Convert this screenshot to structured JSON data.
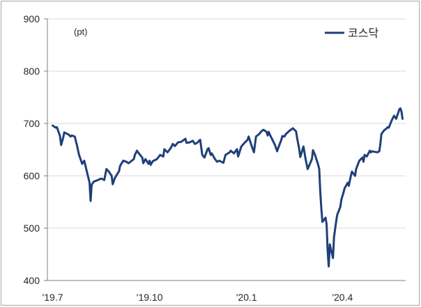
{
  "chart_data": {
    "type": "line",
    "ylabel": "(pt)",
    "ylim": [
      400,
      900
    ],
    "y_ticks": [
      400,
      500,
      600,
      700,
      800,
      900
    ],
    "xlim": [
      "2019-06-26",
      "2020-05-31"
    ],
    "x_ticks": [
      {
        "value": "2019-07-01",
        "label": "'19.7"
      },
      {
        "value": "2019-10-01",
        "label": "'19.10"
      },
      {
        "value": "2020-01-01",
        "label": "'20.1"
      },
      {
        "value": "2020-04-01",
        "label": "'20.4"
      }
    ],
    "grid": true,
    "legend": {
      "position": "top-right"
    },
    "x": [
      "2019-07-01",
      "2019-07-04",
      "2019-07-05",
      "2019-07-08",
      "2019-07-09",
      "2019-07-11",
      "2019-07-12",
      "2019-07-16",
      "2019-07-18",
      "2019-07-19",
      "2019-07-22",
      "2019-07-24",
      "2019-07-26",
      "2019-07-29",
      "2019-07-31",
      "2019-08-02",
      "2019-08-05",
      "2019-08-06",
      "2019-08-07",
      "2019-08-09",
      "2019-08-13",
      "2019-08-16",
      "2019-08-19",
      "2019-08-21",
      "2019-08-23",
      "2019-08-26",
      "2019-08-27",
      "2019-08-29",
      "2019-09-02",
      "2019-09-03",
      "2019-09-06",
      "2019-09-09",
      "2019-09-11",
      "2019-09-16",
      "2019-09-17",
      "2019-09-19",
      "2019-09-20",
      "2019-09-24",
      "2019-09-25",
      "2019-09-27",
      "2019-09-30",
      "2019-10-01",
      "2019-10-02",
      "2019-10-04",
      "2019-10-08",
      "2019-10-11",
      "2019-10-14",
      "2019-10-15",
      "2019-10-18",
      "2019-10-21",
      "2019-10-23",
      "2019-10-25",
      "2019-10-28",
      "2019-10-31",
      "2019-11-04",
      "2019-11-05",
      "2019-11-08",
      "2019-11-11",
      "2019-11-13",
      "2019-11-15",
      "2019-11-18",
      "2019-11-20",
      "2019-11-22",
      "2019-11-25",
      "2019-11-26",
      "2019-11-28",
      "2019-11-29",
      "2019-12-02",
      "2019-12-04",
      "2019-12-06",
      "2019-12-10",
      "2019-12-12",
      "2019-12-16",
      "2019-12-17",
      "2019-12-20",
      "2019-12-23",
      "2019-12-24",
      "2019-12-27",
      "2019-12-30",
      "2020-01-02",
      "2020-01-03",
      "2020-01-06",
      "2020-01-08",
      "2020-01-10",
      "2020-01-13",
      "2020-01-15",
      "2020-01-17",
      "2020-01-20",
      "2020-01-21",
      "2020-01-22",
      "2020-01-23",
      "2020-01-28",
      "2020-01-30",
      "2020-01-31",
      "2020-02-03",
      "2020-02-04",
      "2020-02-06",
      "2020-02-07",
      "2020-02-10",
      "2020-02-12",
      "2020-02-14",
      "2020-02-17",
      "2020-02-18",
      "2020-02-20",
      "2020-02-21",
      "2020-02-24",
      "2020-02-26",
      "2020-02-28",
      "2020-03-02",
      "2020-03-03",
      "2020-03-04",
      "2020-03-06",
      "2020-03-09",
      "2020-03-10",
      "2020-03-11",
      "2020-03-12",
      "2020-03-13",
      "2020-03-16",
      "2020-03-17",
      "2020-03-18",
      "2020-03-19",
      "2020-03-20",
      "2020-03-23",
      "2020-03-24",
      "2020-03-26",
      "2020-03-27",
      "2020-03-30",
      "2020-03-31",
      "2020-04-02",
      "2020-04-03",
      "2020-04-06",
      "2020-04-07",
      "2020-04-09",
      "2020-04-10",
      "2020-04-13",
      "2020-04-14",
      "2020-04-17",
      "2020-04-20",
      "2020-04-21",
      "2020-04-22",
      "2020-04-24",
      "2020-04-27",
      "2020-04-28",
      "2020-04-29",
      "2020-05-04",
      "2020-05-06",
      "2020-05-07",
      "2020-05-08",
      "2020-05-11",
      "2020-05-12",
      "2020-05-14",
      "2020-05-15",
      "2020-05-18",
      "2020-05-20",
      "2020-05-22",
      "2020-05-25",
      "2020-05-26",
      "2020-05-27",
      "2020-05-28"
    ],
    "series": [
      {
        "name": "코스닥",
        "color": "#1f3f79",
        "values": [
          696,
          692,
          693,
          676,
          659,
          673,
          683,
          679,
          675,
          677,
          675,
          659,
          640,
          623,
          629,
          612,
          587,
          552,
          583,
          589,
          592,
          595,
          592,
          613,
          609,
          600,
          584,
          596,
          609,
          619,
          629,
          627,
          624,
          632,
          640,
          648,
          645,
          635,
          624,
          632,
          623,
          629,
          621,
          628,
          632,
          640,
          637,
          651,
          645,
          653,
          661,
          657,
          664,
          665,
          671,
          663,
          664,
          667,
          661,
          663,
          669,
          640,
          635,
          651,
          653,
          640,
          643,
          632,
          627,
          629,
          625,
          640,
          645,
          648,
          643,
          651,
          637,
          656,
          663,
          669,
          675,
          656,
          645,
          675,
          680,
          685,
          688,
          684,
          677,
          684,
          679,
          659,
          647,
          653,
          669,
          676,
          675,
          679,
          685,
          688,
          691,
          685,
          672,
          651,
          636,
          656,
          632,
          613,
          627,
          632,
          649,
          640,
          621,
          613,
          569,
          536,
          512,
          520,
          507,
          456,
          427,
          469,
          443,
          483,
          512,
          525,
          541,
          555,
          568,
          576,
          587,
          581,
          600,
          608,
          600,
          613,
          629,
          635,
          627,
          640,
          637,
          648,
          645,
          647,
          645,
          647,
          661,
          680,
          688,
          689,
          693,
          692,
          707,
          715,
          709,
          727,
          729,
          723,
          709
        ]
      }
    ]
  }
}
